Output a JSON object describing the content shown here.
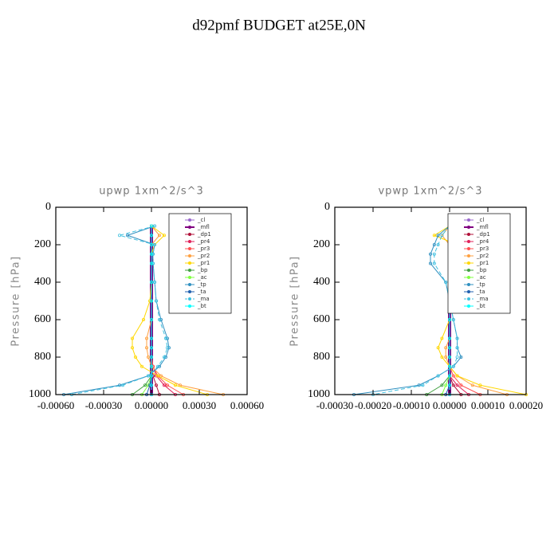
{
  "title": "d92pmf  BUDGET at25E,0N",
  "chart_data": [
    {
      "type": "line",
      "title": "upwp   1xm^2/s^3",
      "ylabel": "Pressure [hPa]",
      "xlim": [
        -0.0006,
        0.0006
      ],
      "xticks": [
        {
          "value": -0.0006,
          "label": "-0.00060"
        },
        {
          "value": -0.0003,
          "label": "-0.00030"
        },
        {
          "value": 0,
          "label": "0.00000"
        },
        {
          "value": 0.0003,
          "label": "0.00030"
        },
        {
          "value": 0.0006,
          "label": "0.00060"
        }
      ],
      "ylim": [
        1000,
        0
      ],
      "yticks": [
        0,
        200,
        400,
        600,
        800,
        1000
      ],
      "legend": "upper right",
      "y": [
        100,
        150,
        200,
        250,
        300,
        400,
        500,
        600,
        700,
        750,
        800,
        850,
        900,
        950,
        1000
      ],
      "series": [
        {
          "name": "_cl",
          "color": "#9966cc",
          "values": [
            0,
            0,
            0,
            0,
            0,
            0,
            0,
            0,
            0,
            0,
            0,
            0,
            0,
            0,
            0
          ]
        },
        {
          "name": "_mfl",
          "color": "#800080",
          "linewidth": 4,
          "values": [
            0,
            0,
            0,
            0,
            0,
            0,
            0,
            0,
            0,
            0,
            0,
            0,
            0,
            0,
            0
          ]
        },
        {
          "name": "_dp1",
          "color": "#b0103a",
          "values": [
            0,
            0,
            0,
            0,
            0,
            0,
            0,
            0,
            0,
            0,
            0,
            0,
            1e-05,
            3e-05,
            5e-05
          ]
        },
        {
          "name": "_pr4",
          "color": "#e0205a",
          "values": [
            0,
            0,
            0,
            0,
            0,
            0,
            0,
            0,
            0,
            0,
            0,
            1e-05,
            3e-05,
            8e-05,
            0.00015
          ]
        },
        {
          "name": "_pr3",
          "color": "#ff5050",
          "values": [
            0,
            0,
            0,
            0,
            0,
            0,
            0,
            0,
            0,
            0,
            0,
            1e-05,
            4e-05,
            0.0001,
            0.0002
          ]
        },
        {
          "name": "_pr2",
          "color": "#ffa040",
          "values": [
            0,
            5e-05,
            0,
            0,
            0,
            0,
            0,
            0,
            -3e-05,
            -3e-05,
            -2e-05,
            0,
            6e-05,
            0.00018,
            0.00045
          ]
        },
        {
          "name": "_pr1",
          "color": "#ffd700",
          "values": [
            0,
            8e-05,
            2e-05,
            0,
            0,
            0,
            -1e-05,
            -5e-05,
            -0.00012,
            -0.00012,
            -0.0001,
            -6e-05,
            4e-05,
            0.00015,
            0.00035
          ]
        },
        {
          "name": "_bp",
          "color": "#40a040",
          "values": [
            0,
            0,
            0,
            0,
            0,
            0,
            0,
            0,
            0,
            0,
            0,
            0,
            0,
            -4e-05,
            -0.00012
          ]
        },
        {
          "name": "_ac",
          "color": "#80ff40",
          "values": [
            0,
            0,
            0,
            0,
            0,
            0,
            0,
            0,
            0,
            0,
            0,
            0,
            0,
            -2e-05,
            -6e-05
          ]
        },
        {
          "name": "_tp",
          "color": "#3090c0",
          "values": [
            2e-05,
            -0.00015,
            2e-05,
            1e-05,
            1e-05,
            2e-05,
            3e-05,
            6e-05,
            0.0001,
            0.00011,
            9e-05,
            5e-05,
            -2e-05,
            -0.0002,
            -0.00055
          ]
        },
        {
          "name": "_ta",
          "color": "#2060b0",
          "values": [
            0,
            0,
            0,
            0,
            0,
            0,
            0,
            0,
            0,
            0,
            0,
            0,
            0,
            -1e-05,
            -3e-05
          ]
        },
        {
          "name": "_ma",
          "color": "#40c0e0",
          "dash": true,
          "values": [
            2e-05,
            -0.0002,
            2e-05,
            1e-05,
            1e-05,
            2e-05,
            3e-05,
            5e-05,
            9e-05,
            0.0001,
            8e-05,
            4e-05,
            -2e-05,
            -0.00018,
            -0.0005
          ]
        },
        {
          "name": "_bt",
          "color": "#00ffff",
          "values": [
            0,
            0,
            0,
            0,
            0,
            0,
            0,
            0,
            0,
            0,
            0,
            0,
            0,
            0,
            0
          ]
        }
      ]
    },
    {
      "type": "line",
      "title": "vpwp   1xm^2/s^3",
      "ylabel": "Pressure [hPa]",
      "xlim": [
        -0.0003,
        0.0002
      ],
      "xticks": [
        {
          "value": -0.0003,
          "label": "-0.00030"
        },
        {
          "value": -0.0002,
          "label": "-0.00020"
        },
        {
          "value": -0.0001,
          "label": "-0.00010"
        },
        {
          "value": 0,
          "label": "0.00000"
        },
        {
          "value": 0.0001,
          "label": "0.00010"
        },
        {
          "value": 0.0002,
          "label": "0.00020"
        }
      ],
      "ylim": [
        1000,
        0
      ],
      "yticks": [
        0,
        200,
        400,
        600,
        800,
        1000
      ],
      "legend": "upper right",
      "y": [
        100,
        150,
        200,
        250,
        300,
        400,
        500,
        600,
        700,
        750,
        800,
        850,
        900,
        950,
        1000
      ],
      "series": [
        {
          "name": "_cl",
          "color": "#9966cc",
          "values": [
            0,
            0,
            0,
            0,
            0,
            0,
            0,
            0,
            0,
            0,
            0,
            0,
            0,
            0,
            0
          ]
        },
        {
          "name": "_mfl",
          "color": "#800080",
          "linewidth": 4,
          "values": [
            0,
            0,
            0,
            0,
            0,
            0,
            0,
            0,
            0,
            0,
            0,
            0,
            0,
            0,
            0
          ]
        },
        {
          "name": "_dp1",
          "color": "#b0103a",
          "values": [
            0,
            0,
            0,
            0,
            0,
            0,
            0,
            0,
            0,
            0,
            0,
            0,
            0,
            1e-05,
            3e-05
          ]
        },
        {
          "name": "_pr4",
          "color": "#e0205a",
          "values": [
            0,
            0,
            0,
            0,
            0,
            0,
            0,
            0,
            0,
            0,
            0,
            0,
            0,
            2e-05,
            5e-05
          ]
        },
        {
          "name": "_pr3",
          "color": "#ff5050",
          "values": [
            0,
            0,
            0,
            0,
            0,
            0,
            0,
            0,
            0,
            0,
            0,
            0,
            1e-05,
            3e-05,
            8e-05
          ]
        },
        {
          "name": "_pr2",
          "color": "#ffa040",
          "values": [
            0,
            -2e-05,
            0,
            0,
            0,
            0,
            0,
            0,
            0,
            -1e-05,
            -1e-05,
            0,
            2e-05,
            6e-05,
            0.00015
          ]
        },
        {
          "name": "_pr1",
          "color": "#ffd700",
          "values": [
            0,
            -4e-05,
            2e-05,
            2e-05,
            1e-05,
            0,
            0,
            0,
            -2e-05,
            -3e-05,
            -2e-05,
            0,
            2e-05,
            8e-05,
            0.0002
          ]
        },
        {
          "name": "_bp",
          "color": "#40a040",
          "values": [
            0,
            0,
            0,
            0,
            0,
            0,
            0,
            0,
            0,
            0,
            0,
            0,
            0,
            -2e-05,
            -6e-05
          ]
        },
        {
          "name": "_ac",
          "color": "#80ff40",
          "values": [
            0,
            0,
            0,
            0,
            0,
            0,
            0,
            0,
            0,
            0,
            0,
            0,
            0,
            -1e-05,
            -2e-05
          ]
        },
        {
          "name": "_tp",
          "color": "#3090c0",
          "values": [
            0,
            -3e-05,
            -4e-05,
            -5e-05,
            -5e-05,
            -1e-05,
            0,
            1e-05,
            2e-05,
            2e-05,
            3e-05,
            1e-05,
            -3e-05,
            -8e-05,
            -0.00025
          ]
        },
        {
          "name": "_ta",
          "color": "#2060b0",
          "values": [
            0,
            0,
            0,
            0,
            0,
            0,
            0,
            0,
            0,
            0,
            0,
            0,
            0,
            0,
            -1e-05
          ]
        },
        {
          "name": "_ma",
          "color": "#40c0e0",
          "dash": true,
          "values": [
            0,
            -2e-05,
            -3e-05,
            -4e-05,
            -4e-05,
            -1e-05,
            0,
            1e-05,
            2e-05,
            2e-05,
            2e-05,
            1e-05,
            -3e-05,
            -7e-05,
            -0.0002
          ]
        },
        {
          "name": "_bt",
          "color": "#00ffff",
          "values": [
            0,
            0,
            0,
            0,
            0,
            0,
            0,
            0,
            0,
            0,
            0,
            0,
            0,
            0,
            0
          ]
        }
      ]
    }
  ]
}
